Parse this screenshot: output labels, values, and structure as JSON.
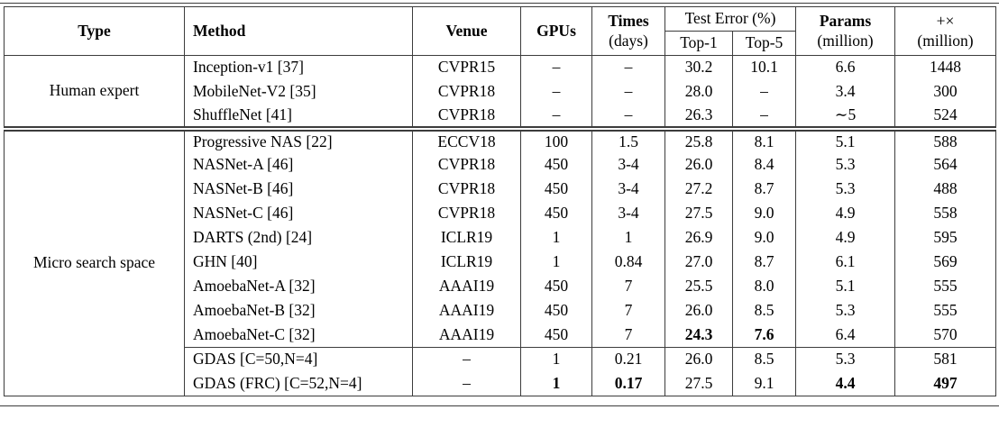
{
  "colors": {
    "line": "#3c3c3c",
    "text": "#000000",
    "background": "#ffffff"
  },
  "table": {
    "header": {
      "type": "Type",
      "method": "Method",
      "venue": "Venue",
      "gpus": "GPUs",
      "times_line1": "Times",
      "times_line2": "(days)",
      "test_error": "Test Error (%)",
      "top1": "Top-1",
      "top5": "Top-5",
      "params_line1": "Params",
      "params_line2": "(million)",
      "madds_line1": "+×",
      "madds_line2": "(million)"
    },
    "sections": [
      {
        "type": "Human expert",
        "rows": [
          {
            "cells": [
              "Inception-v1 [37]",
              "CVPR15",
              "–",
              "–",
              "30.2",
              "10.1",
              "6.6",
              "1448"
            ],
            "bold": [],
            "cline": false
          },
          {
            "cells": [
              "MobileNet-V2 [35]",
              "CVPR18",
              "–",
              "–",
              "28.0",
              "–",
              "3.4",
              "300"
            ],
            "bold": [],
            "cline": false
          },
          {
            "cells": [
              "ShuffleNet [41]",
              "CVPR18",
              "–",
              "–",
              "26.3",
              "–",
              "∼5",
              "524"
            ],
            "bold": [],
            "cline": false
          }
        ]
      },
      {
        "type": "Micro search space",
        "rows": [
          {
            "cells": [
              "Progressive NAS [22]",
              "ECCV18",
              "100",
              "1.5",
              "25.8",
              "8.1",
              "5.1",
              "588"
            ],
            "bold": [],
            "cline": false
          },
          {
            "cells": [
              "NASNet-A [46]",
              "CVPR18",
              "450",
              "3-4",
              "26.0",
              "8.4",
              "5.3",
              "564"
            ],
            "bold": [],
            "cline": false
          },
          {
            "cells": [
              "NASNet-B [46]",
              "CVPR18",
              "450",
              "3-4",
              "27.2",
              "8.7",
              "5.3",
              "488"
            ],
            "bold": [],
            "cline": false
          },
          {
            "cells": [
              "NASNet-C [46]",
              "CVPR18",
              "450",
              "3-4",
              "27.5",
              "9.0",
              "4.9",
              "558"
            ],
            "bold": [],
            "cline": false
          },
          {
            "cells": [
              "DARTS (2nd) [24]",
              "ICLR19",
              "1",
              "1",
              "26.9",
              "9.0",
              "4.9",
              "595"
            ],
            "bold": [],
            "cline": false
          },
          {
            "cells": [
              "GHN [40]",
              "ICLR19",
              "1",
              "0.84",
              "27.0",
              "8.7",
              "6.1",
              "569"
            ],
            "bold": [],
            "cline": false
          },
          {
            "cells": [
              "AmoebaNet-A [32]",
              "AAAI19",
              "450",
              "7",
              "25.5",
              "8.0",
              "5.1",
              "555"
            ],
            "bold": [],
            "cline": false
          },
          {
            "cells": [
              "AmoebaNet-B [32]",
              "AAAI19",
              "450",
              "7",
              "26.0",
              "8.5",
              "5.3",
              "555"
            ],
            "bold": [],
            "cline": false
          },
          {
            "cells": [
              "AmoebaNet-C [32]",
              "AAAI19",
              "450",
              "7",
              "24.3",
              "7.6",
              "6.4",
              "570"
            ],
            "bold": [
              4,
              5
            ],
            "cline": false
          },
          {
            "cells": [
              "GDAS [C=50,N=4]",
              "–",
              "1",
              "0.21",
              "26.0",
              "8.5",
              "5.3",
              "581"
            ],
            "bold": [],
            "cline": true
          },
          {
            "cells": [
              "GDAS (FRC) [C=52,N=4]",
              "–",
              "1",
              "0.17",
              "27.5",
              "9.1",
              "4.4",
              "497"
            ],
            "bold": [
              2,
              3,
              6,
              7
            ],
            "cline": false
          }
        ]
      }
    ]
  }
}
